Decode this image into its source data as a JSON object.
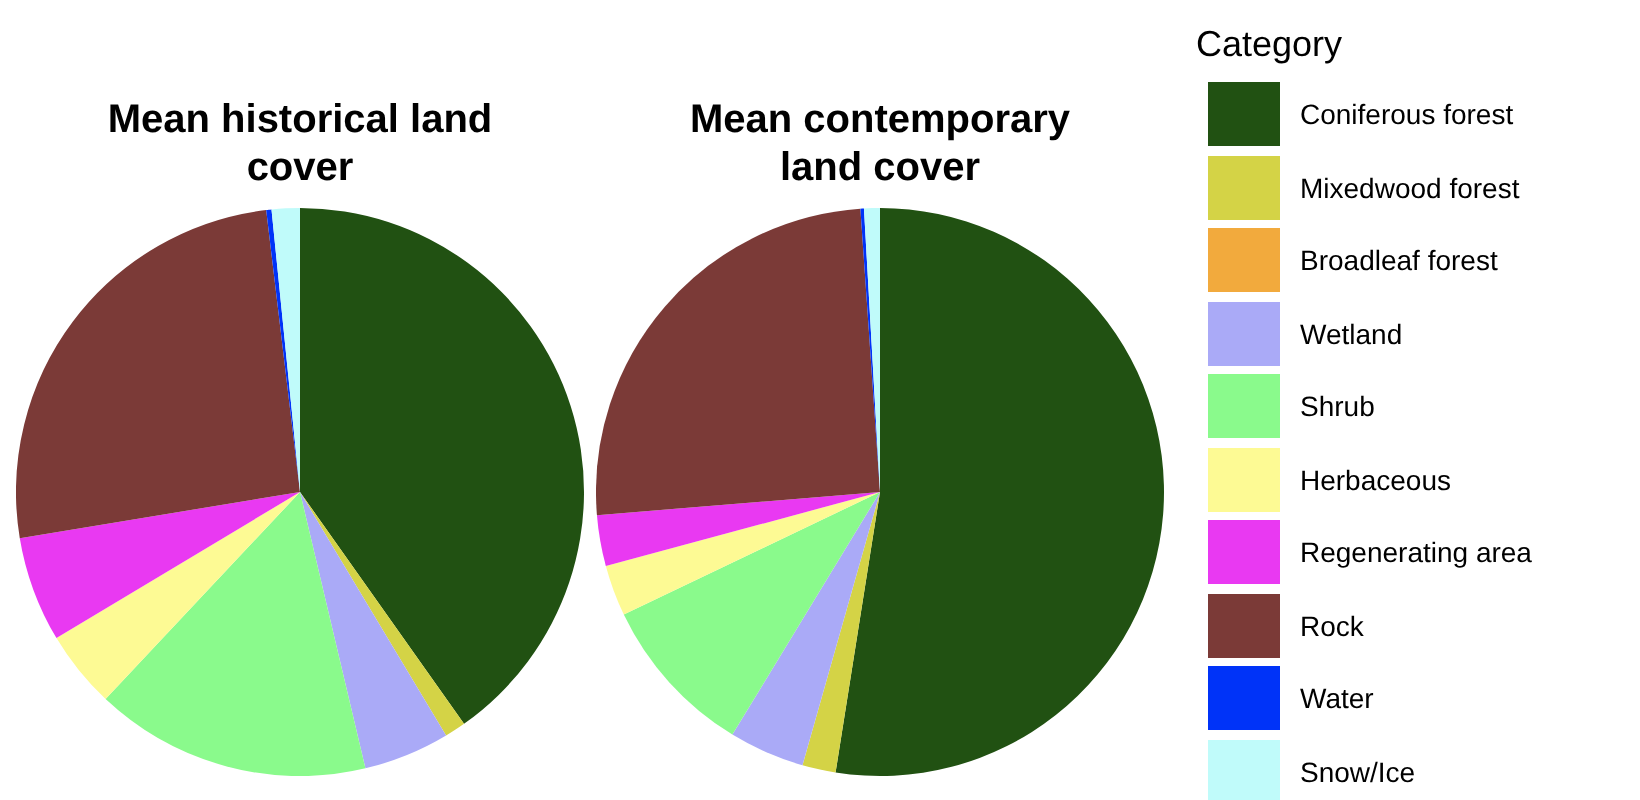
{
  "chart_data": [
    {
      "type": "pie",
      "title": "Mean historical land cover",
      "categories": [
        null,
        null,
        null,
        null,
        null,
        null,
        null,
        null,
        null,
        null
      ],
      "values": [
        40.2,
        1.2,
        0,
        4.9,
        15.7,
        4.4,
        6,
        25.7,
        0.3,
        1.6
      ],
      "colors": [
        "#215112",
        "#d4d346",
        "#f2aa3d",
        "#aaaaf7",
        "#8afa8c",
        "#fdfa94",
        "#e939f2",
        "#7b3a37",
        "#0033f8",
        "#c0fbfa"
      ],
      "legend": false
    },
    {
      "type": "pie",
      "title": "Mean contemporary land cover",
      "categories": [
        "Coniferous forest",
        "Mixedwood forest",
        "Broadleaf forest",
        "Wetland",
        "Shrub",
        "Herbaceous",
        "Regenerating area",
        "Rock",
        "Water",
        "Snow/Ice"
      ],
      "values": [
        52.5,
        1.9,
        0,
        4.3,
        9.2,
        2.9,
        2.9,
        25.2,
        0.2,
        0.9
      ],
      "colors": [
        "#215112",
        "#d4d346",
        "#f2aa3d",
        "#aaaaf7",
        "#8afa8c",
        "#fdfa94",
        "#e939f2",
        "#7b3a37",
        "#0033f8",
        "#c0fbfa"
      ],
      "legend": "right",
      "legend_title": "Category"
    }
  ]
}
